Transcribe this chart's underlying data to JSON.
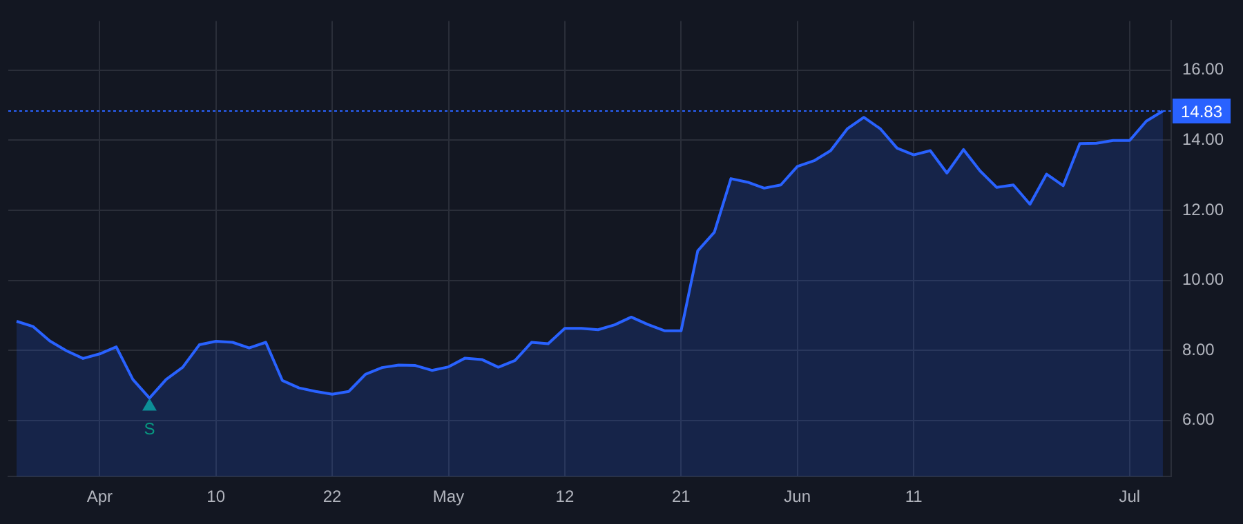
{
  "chart_data": {
    "type": "area",
    "categories": [
      null,
      null,
      null,
      null,
      null,
      "Apr",
      null,
      null,
      null,
      null,
      null,
      null,
      "10",
      null,
      null,
      null,
      null,
      null,
      null,
      "22",
      null,
      null,
      null,
      null,
      null,
      null,
      "May",
      null,
      null,
      null,
      null,
      null,
      null,
      "12",
      null,
      null,
      null,
      null,
      null,
      null,
      "21",
      null,
      null,
      null,
      null,
      null,
      null,
      "Jun",
      null,
      null,
      null,
      null,
      null,
      null,
      "11",
      null,
      null,
      null,
      null,
      null,
      null,
      null,
      null,
      null,
      null,
      null,
      null,
      "Jul",
      null,
      null
    ],
    "series": [
      {
        "color": "#2962ff",
        "values": [
          8.83,
          8.68,
          8.27,
          7.99,
          7.77,
          7.9,
          8.1,
          7.17,
          6.64,
          7.17,
          7.52,
          8.16,
          8.26,
          8.23,
          8.07,
          8.23,
          7.14,
          6.93,
          6.83,
          6.75,
          6.83,
          7.32,
          7.51,
          7.58,
          7.57,
          7.43,
          7.53,
          7.78,
          7.74,
          7.52,
          7.71,
          8.23,
          8.19,
          8.63,
          8.63,
          8.59,
          8.73,
          8.95,
          8.74,
          8.56,
          8.56,
          10.84,
          11.37,
          12.9,
          12.8,
          12.63,
          12.72,
          13.25,
          13.41,
          13.7,
          14.32,
          14.65,
          14.32,
          13.77,
          13.58,
          13.7,
          13.06,
          13.73,
          13.12,
          12.65,
          12.72,
          12.17,
          13.03,
          12.7,
          13.9,
          13.91,
          13.99,
          13.99,
          14.54,
          14.83
        ]
      },
      {
        "type": "scatter",
        "color": "#089981",
        "marker": "triangle",
        "values": [
          null,
          null,
          null,
          null,
          null,
          null,
          null,
          null,
          6.4,
          null,
          null,
          null,
          null,
          null,
          null,
          null,
          null,
          null,
          null,
          null,
          null,
          null,
          null,
          null,
          null,
          null,
          null,
          null,
          null,
          null,
          null,
          null,
          null,
          null,
          null,
          null,
          null,
          null,
          null,
          null,
          null,
          null,
          null,
          null,
          null,
          null,
          null,
          null,
          null,
          null,
          null,
          null,
          null,
          null,
          null,
          null,
          null,
          null,
          null,
          null,
          null,
          null,
          null,
          null,
          null,
          null,
          null,
          null,
          null,
          null
        ]
      }
    ],
    "ylim": [
      4.4,
      17.4
    ],
    "yticks": [
      {
        "value": 6,
        "label": "6.00"
      },
      {
        "value": 8,
        "label": "8.00"
      },
      {
        "value": 10,
        "label": "10.00"
      },
      {
        "value": 12,
        "label": "12.00"
      },
      {
        "value": 14,
        "label": "14.00"
      },
      {
        "value": 16,
        "label": "16.00"
      }
    ],
    "ref_lines": [
      {
        "axis": "y",
        "value": 14.83,
        "label": "14.83",
        "color": "#2962ff",
        "line_style": "dotted"
      }
    ],
    "annotations": [
      {
        "text": "S",
        "y": 6.4
      }
    ],
    "grid": true,
    "legend": false
  }
}
